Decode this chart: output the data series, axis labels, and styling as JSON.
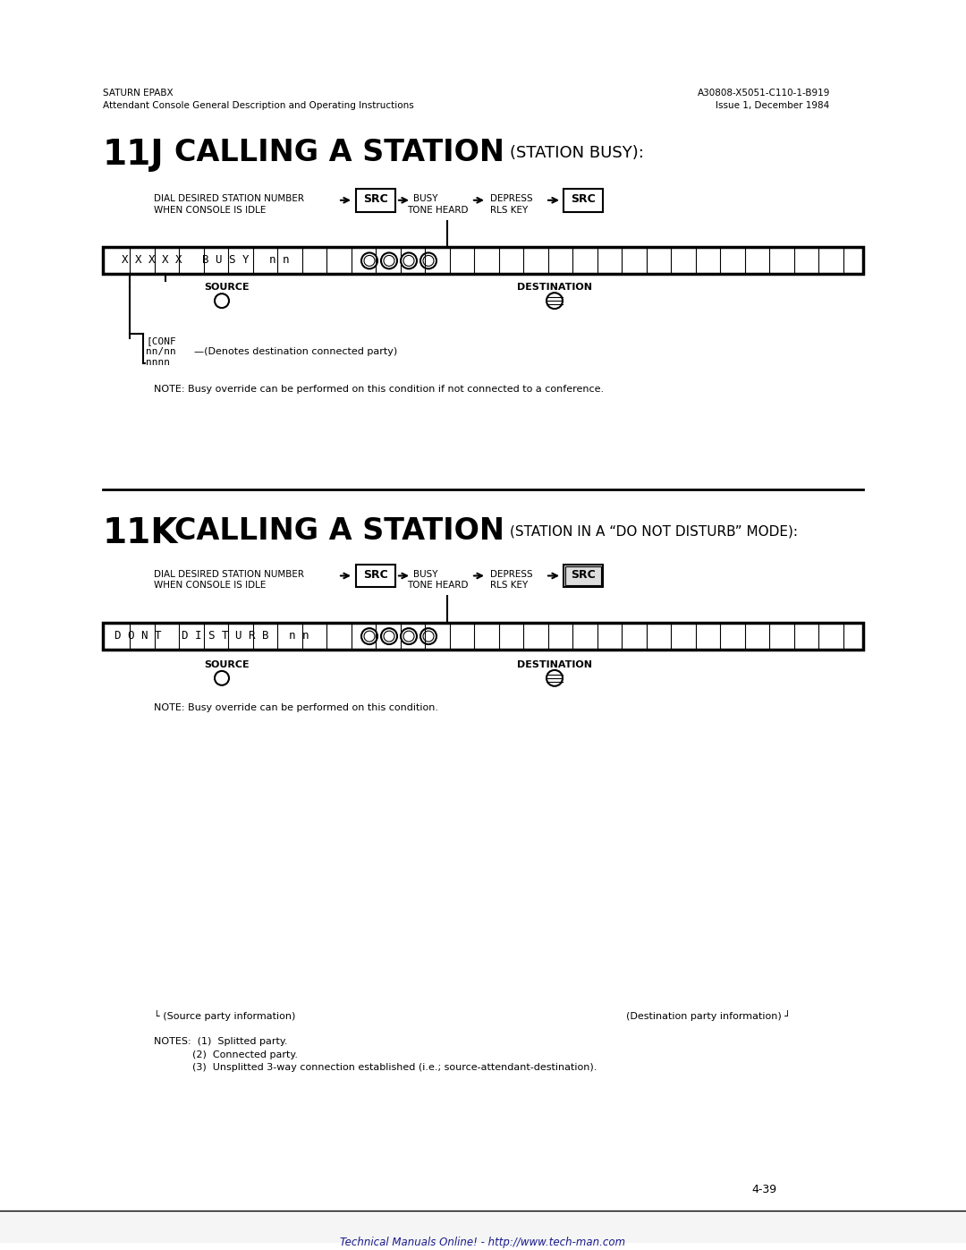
{
  "bg_color": "#ffffff",
  "header_left_line1": "SATURN EPABX",
  "header_left_line2": "Attendant Console General Description and Operating Instructions",
  "header_right_line1": "A30808-X5051-C110-1-B919",
  "header_right_line2": "Issue 1, December 1984",
  "section_11j_num": "11J",
  "section_11j_title": "CALLING A STATION",
  "section_11j_subtitle": "(STATION BUSY):",
  "section_11k_num": "11K",
  "section_11k_title": "CALLING A STATION",
  "section_11k_subtitle": "(STATION IN A “DO NOT DISTURB” MODE):",
  "flow_label1": "DIAL DESIRED STATION NUMBER\nWHEN CONSOLE IS IDLE",
  "flow_src1": "SRC",
  "flow_label2": "BUSY\nTONE HEARD",
  "flow_label3": "DEPRESS\nRLS KEY",
  "flow_src2": "SRC",
  "display_11j": "X X X X X   B U S Y   n n",
  "display_11k": "D O N T   D I S T U R B   n n",
  "source_label": "SOURCE",
  "dest_label": "DESTINATION",
  "conf_label": "[CONF\nnn/nn\nnnnn",
  "denotes_label": "—(Denotes destination connected party)",
  "note_11j": "NOTE: Busy override can be performed on this condition if not connected to a conference.",
  "note_11k": "NOTE: Busy override can be performed on this condition.",
  "notes_footer": "NOTES:  (1)  Splitted party.\n           (2)  Connected party.\n           (3)  Unsplitted 3-way connection established (i.e.; source-attendant-destination).",
  "source_info_label": "└ (Source party information)",
  "dest_info_label": "(Destination party information) ┘",
  "page_num": "4-39",
  "footer_text": "Technical Manuals Online! - http://www.tech-man.com"
}
